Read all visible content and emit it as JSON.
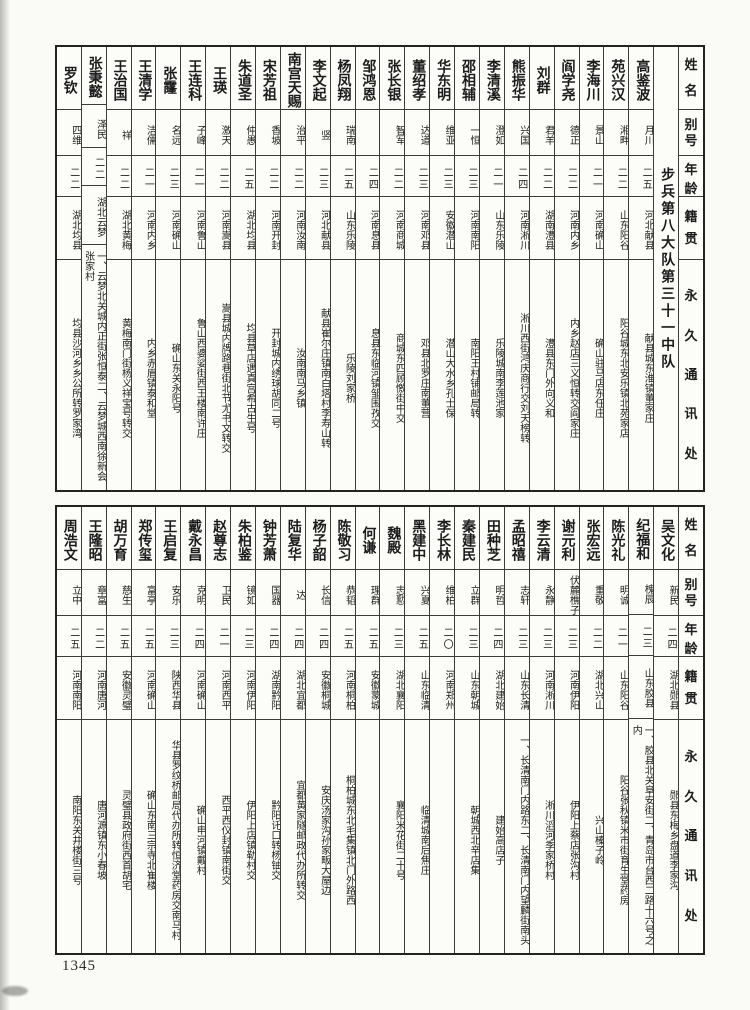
{
  "page": {
    "number": "1345"
  },
  "table_headers": {
    "name": "姓名",
    "alias": "别号",
    "age": "年龄",
    "native": "籍贯",
    "address": "永久通讯处"
  },
  "unit_title": "步兵第八大队第三十一中队",
  "top_table": {
    "people": [
      {
        "name": "高鉴波",
        "alias": "月川",
        "age": "二五",
        "native": "河北献县",
        "address": "献县城东淮镇董家庄"
      },
      {
        "name": "苑兴汉",
        "alias": "湘畔",
        "age": "二二",
        "native": "山东阳谷",
        "address": "阳谷城东北安乐镇北苑家店"
      },
      {
        "name": "李海川",
        "alias": "景山",
        "age": "二一",
        "native": "河南确山",
        "address": "确山驻马店东任庄"
      },
      {
        "name": "阎学尧",
        "alias": "德正",
        "age": "二二",
        "native": "河南内乡",
        "address": "内乡赵店三义恒转交阎家庄"
      },
      {
        "name": "刘群",
        "alias": "君羊",
        "age": "二二",
        "native": "湖南澧县",
        "address": "澧县东门外向义和"
      },
      {
        "name": "熊振华",
        "alias": "兴国",
        "age": "二四",
        "native": "河南淅川",
        "address": "淅川西街鸿庆商行交刘天榜转"
      },
      {
        "name": "李清溪",
        "alias": "澄如",
        "age": "二一",
        "native": "山东乐陵",
        "address": "乐陵城南李莲池家"
      },
      {
        "name": "邵相辅",
        "alias": "一恒",
        "age": "二三",
        "native": "河南南阳",
        "address": "南阳王村铺邮局转"
      },
      {
        "name": "华东明",
        "alias": "维亚",
        "age": "二三",
        "native": "安徽潜山",
        "address": "潜山大水乡孔士保"
      },
      {
        "name": "董绍孝",
        "alias": "达道",
        "age": "二三",
        "native": "河南邓县",
        "address": "邓县北罗庄南董营"
      },
      {
        "name": "张长银",
        "alias": "智军",
        "age": "二二",
        "native": "河南商城",
        "address": "商城东四顾憿街中交"
      },
      {
        "name": "邹鸿恩",
        "alias": "",
        "age": "二四",
        "native": "河南息县",
        "address": "息县东临河镇邹围孜交"
      },
      {
        "name": "杨凤翔",
        "alias": "瑞南",
        "age": "二五",
        "native": "山东乐陵",
        "address": "乐陵刘家桥"
      },
      {
        "name": "李文起",
        "alias": "竖",
        "age": "二三",
        "native": "河北献县",
        "address": "献县崔尔庄镇南白塔村李寿山转"
      },
      {
        "name": "南宫天赐",
        "alias": "治平",
        "age": "二二",
        "native": "河南汝南",
        "address": "汝南南马乡镇"
      },
      {
        "name": "宋芳祖",
        "alias": "香坡",
        "age": "二二",
        "native": "河南开封",
        "address": "开封城内绣球胡同二号"
      },
      {
        "name": "朱道圣",
        "alias": "仲愚",
        "age": "二五",
        "native": "湖北均县",
        "address": "均县草店遇真宫希古生号"
      },
      {
        "name": "王瑛",
        "alias": "激天",
        "age": "二二",
        "native": "河南嵩县",
        "address": "嵩县城内牌路巷街北节尤书文转交"
      },
      {
        "name": "王连科",
        "alias": "子峰",
        "age": "二一",
        "native": "河南鲁山",
        "address": "鲁山西婆娑街西王楼南许庄"
      },
      {
        "name": "张霳",
        "alias": "名远",
        "age": "二三",
        "native": "河南确山",
        "address": "确山东关永阳号"
      },
      {
        "name": "王清学",
        "alias": "洁儒",
        "age": "二一",
        "native": "河南内乡",
        "address": "内乡赤眉镇泰和堂"
      },
      {
        "name": "王治国",
        "alias": "祥",
        "age": "二二",
        "native": "湖北黄梅",
        "address": "黄梅南门街杨义祥宝号转交"
      },
      {
        "name": "张秉懿",
        "alias": "泽民",
        "age": "二二",
        "native": "湖北云梦",
        "address": "一、云梦北关城内正街张恒泰二、云梦城西南徐新会张家村"
      },
      {
        "name": "罗钦",
        "alias": "四维",
        "age": "二二",
        "native": "湖北均县",
        "address": "均县沙河乡乡公所转罗家湾"
      }
    ]
  },
  "bottom_table": {
    "people": [
      {
        "name": "吴文化",
        "alias": "新民",
        "age": "二四",
        "native": "湖北郧县",
        "address": "郧县东梅乡盘道李家沟"
      },
      {
        "name": "纪福和",
        "alias": "槐辰",
        "age": "二三",
        "native": "山东胶县",
        "address": "一、胶县北关阜安街二、青岛市台西二路十六号之内"
      },
      {
        "name": "陈光礼",
        "alias": "明诚",
        "age": "二一",
        "native": "山东阳谷",
        "address": "阳谷张秋镇米市街育生堂药房"
      },
      {
        "name": "张宏远",
        "alias": "重敬",
        "age": "二二",
        "native": "湖北兴山",
        "address": "兴山榛子岭"
      },
      {
        "name": "谢元利",
        "alias": "伏麓樵子",
        "age": "二三",
        "native": "河南伊阳",
        "address": "伊阳上蔡店张沟村"
      },
      {
        "name": "李云清",
        "alias": "永静",
        "age": "二三",
        "native": "河南淅川",
        "address": "淅川滔河季家桥村"
      },
      {
        "name": "孟昭禧",
        "alias": "志轩",
        "age": "二三",
        "native": "山东长清",
        "address": "一、长清南门内路东二、长清南门内望麟街南头"
      },
      {
        "name": "田种芝",
        "alias": "明哲",
        "age": "二四",
        "native": "湖北建始",
        "address": "建始高店子"
      },
      {
        "name": "秦建民",
        "alias": "立群",
        "age": "二三",
        "native": "山东朝城",
        "address": "朝城西北辛店集"
      },
      {
        "name": "李长林",
        "alias": "维柏",
        "age": "二〇",
        "native": "河南郑州",
        "address": ""
      },
      {
        "name": "黑建中",
        "alias": "兴夏",
        "age": "二五",
        "native": "山东临清",
        "address": "临清城南后焦庄"
      },
      {
        "name": "魏殿",
        "alias": "志懃",
        "age": "二三",
        "native": "湖北襄阳",
        "address": "襄阳米花街二十号"
      },
      {
        "name": "何谦",
        "alias": "理群",
        "age": "二五",
        "native": "安徽蒙城",
        "address": ""
      },
      {
        "name": "陈敬习",
        "alias": "恭韬",
        "age": "二五",
        "native": "河南桐柏",
        "address": "桐柏城东北毛集镇北门外路西"
      },
      {
        "name": "杨子韶",
        "alias": "长信",
        "age": "二四",
        "native": "安徽桐城",
        "address": "安庆汤家沟孙家畈大屋边"
      },
      {
        "name": "陆复华",
        "alias": "达",
        "age": "二四",
        "native": "湖北宜都",
        "address": "宜都黄家隧邮政代办所转交"
      },
      {
        "name": "钟芳萧",
        "alias": "国器",
        "age": "二四",
        "native": "湖南黔阳",
        "address": "黔阳讬口转杨铀交"
      },
      {
        "name": "朱柏鉴",
        "alias": "镜如",
        "age": "二三",
        "native": "河南伊阳",
        "address": "伊阳上店镇勒村交"
      },
      {
        "name": "赵尊志",
        "alias": "卫民",
        "age": "二一",
        "native": "河南西平",
        "address": "西平西仪封镇南街交"
      },
      {
        "name": "戴永昌",
        "alias": "克明",
        "age": "二四",
        "native": "河南确山",
        "address": "确山申河镇戴村"
      },
      {
        "name": "王启复",
        "alias": "安乐",
        "age": "二三",
        "native": "陕西华县",
        "address": "华县罗纹桥邮局代办所转恒济堂药房交南马村"
      },
      {
        "name": "郑传玺",
        "alias": "富亭",
        "age": "二五",
        "native": "河南确山",
        "address": "确山东南三宗寺北崔楼"
      },
      {
        "name": "胡万育",
        "alias": "慈生",
        "age": "二五",
        "native": "安徽灵璧",
        "address": "灵璧县政府街西首胡宅"
      },
      {
        "name": "王隆昭",
        "alias": "章富",
        "age": "二二",
        "native": "河南唐河",
        "address": "唐河源镇东小春坡"
      },
      {
        "name": "周浩文",
        "alias": "立中",
        "age": "二五",
        "native": "河南南阳",
        "address": "南阳东关井楼街三号"
      }
    ]
  }
}
